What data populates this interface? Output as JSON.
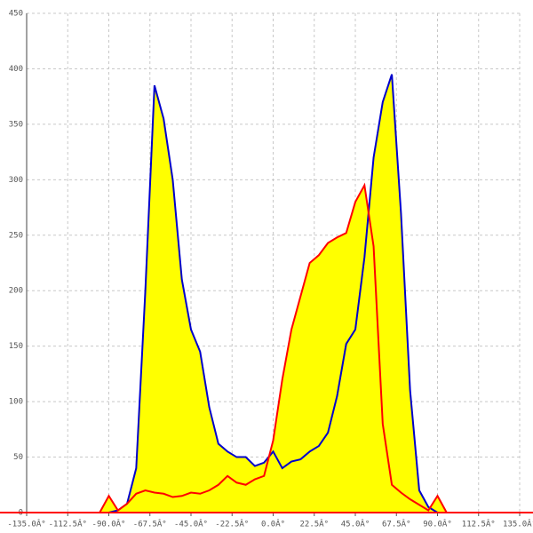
{
  "chart_data": {
    "type": "area-line",
    "x": [
      -95,
      -90,
      -85,
      -80,
      -75,
      -70,
      -65,
      -60,
      -55,
      -50,
      -45,
      -40,
      -35,
      -30,
      -25,
      -20,
      -15,
      -10,
      -5,
      0,
      5,
      10,
      15,
      20,
      25,
      30,
      35,
      40,
      45,
      50,
      55,
      60,
      65,
      70,
      75,
      80,
      85,
      90,
      95
    ],
    "series": [
      {
        "color": "#0000cc",
        "values": [
          0,
          0,
          2,
          8,
          40,
          200,
          385,
          355,
          300,
          210,
          165,
          145,
          95,
          62,
          55,
          50,
          50,
          42,
          45,
          55,
          40,
          46,
          48,
          55,
          60,
          72,
          105,
          152,
          165,
          230,
          320,
          370,
          395,
          270,
          110,
          20,
          5,
          0,
          0
        ]
      },
      {
        "color": "#ff0000",
        "values": [
          0,
          15,
          2,
          8,
          17,
          20,
          18,
          17,
          14,
          15,
          18,
          17,
          20,
          25,
          33,
          27,
          25,
          30,
          33,
          65,
          120,
          165,
          195,
          225,
          232,
          243,
          248,
          252,
          280,
          295,
          240,
          80,
          25,
          18,
          12,
          7,
          2,
          15,
          0
        ]
      }
    ],
    "fill_color": "#ffff00",
    "xlim": [
      -135,
      135
    ],
    "xticks": [
      {
        "value": -135,
        "label": "-135.0Â°"
      },
      {
        "value": -112.5,
        "label": "-112.5Â°"
      },
      {
        "value": -90,
        "label": "-90.0Â°"
      },
      {
        "value": -67.5,
        "label": "-67.5Â°"
      },
      {
        "value": -45,
        "label": "-45.0Â°"
      },
      {
        "value": -22.5,
        "label": "-22.5Â°"
      },
      {
        "value": 0,
        "label": "0.0Â°"
      },
      {
        "value": 22.5,
        "label": "22.5Â°"
      },
      {
        "value": 45,
        "label": "45.0Â°"
      },
      {
        "value": 67.5,
        "label": "67.5Â°"
      },
      {
        "value": 90,
        "label": "90.0Â°"
      },
      {
        "value": 112.5,
        "label": "112.5Â°"
      },
      {
        "value": 135,
        "label": "135.0Â°"
      }
    ],
    "ylim": [
      0,
      450
    ],
    "yticks": [
      0,
      50,
      100,
      150,
      200,
      250,
      300,
      350,
      400,
      450
    ],
    "grid": true
  }
}
